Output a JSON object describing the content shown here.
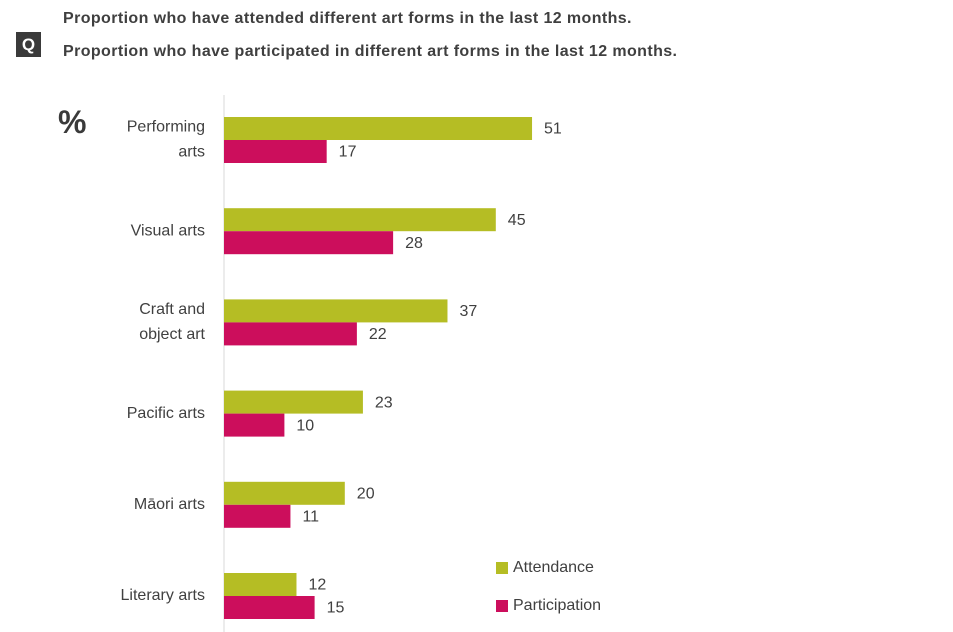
{
  "header": {
    "badge": "Q",
    "title_line1": "Proportion who have attended different art forms in the last 12 months.",
    "title_line2": "Proportion who have participated in different art forms in the last 12 months."
  },
  "unit_label": "%",
  "colors": {
    "attendance": "#b5bd24",
    "participation": "#cc0e5c",
    "axis": "#d9d9d9"
  },
  "chart_data": {
    "type": "bar",
    "orientation": "horizontal",
    "categories": [
      [
        "Performing",
        "arts"
      ],
      [
        "Visual arts"
      ],
      [
        "Craft and",
        "object art"
      ],
      [
        "Pacific arts"
      ],
      [
        "Māori arts"
      ],
      [
        "Literary arts"
      ]
    ],
    "series": [
      {
        "name": "Attendance",
        "values": [
          51,
          45,
          37,
          23,
          20,
          12
        ]
      },
      {
        "name": "Participation",
        "values": [
          17,
          28,
          22,
          10,
          11,
          15
        ]
      }
    ],
    "ylabel": "%",
    "xlim": [
      0,
      60
    ],
    "grid": false,
    "legend_position": "bottom-right",
    "data_labels": true
  }
}
